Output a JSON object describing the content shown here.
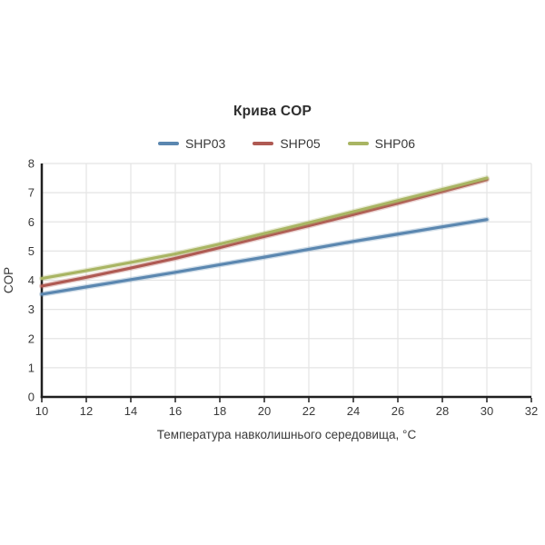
{
  "chart_data": {
    "type": "line",
    "title": "Крива COP",
    "xlabel": "Температура навколишнього середовища, °C",
    "ylabel": "COP",
    "x": [
      10,
      12,
      14,
      16,
      18,
      20,
      22,
      24,
      26,
      28,
      30
    ],
    "series": [
      {
        "name": "SHP03",
        "color": "#5B87B0",
        "values": [
          3.52,
          3.77,
          4.02,
          4.27,
          4.53,
          4.79,
          5.06,
          5.33,
          5.58,
          5.83,
          6.08
        ]
      },
      {
        "name": "SHP05",
        "color": "#AF5A53",
        "values": [
          3.8,
          4.1,
          4.42,
          4.75,
          5.12,
          5.5,
          5.87,
          6.25,
          6.64,
          7.04,
          7.45
        ]
      },
      {
        "name": "SHP06",
        "color": "#A9B563",
        "values": [
          4.06,
          4.33,
          4.61,
          4.9,
          5.24,
          5.6,
          5.97,
          6.35,
          6.73,
          7.11,
          7.5
        ]
      }
    ],
    "xlim": [
      10,
      32
    ],
    "ylim": [
      0,
      8
    ],
    "x_ticks": [
      10,
      12,
      14,
      16,
      18,
      20,
      22,
      24,
      26,
      28,
      30,
      32
    ],
    "y_ticks": [
      0,
      1,
      2,
      3,
      4,
      5,
      6,
      7,
      8
    ],
    "grid": true,
    "legend_position": "top"
  },
  "colors": {
    "background": "#ffffff",
    "grid": "#e4e4e4",
    "axis": "#1f1f1f",
    "text": "#3a3a3a",
    "title_text": "#2e2e2e"
  }
}
